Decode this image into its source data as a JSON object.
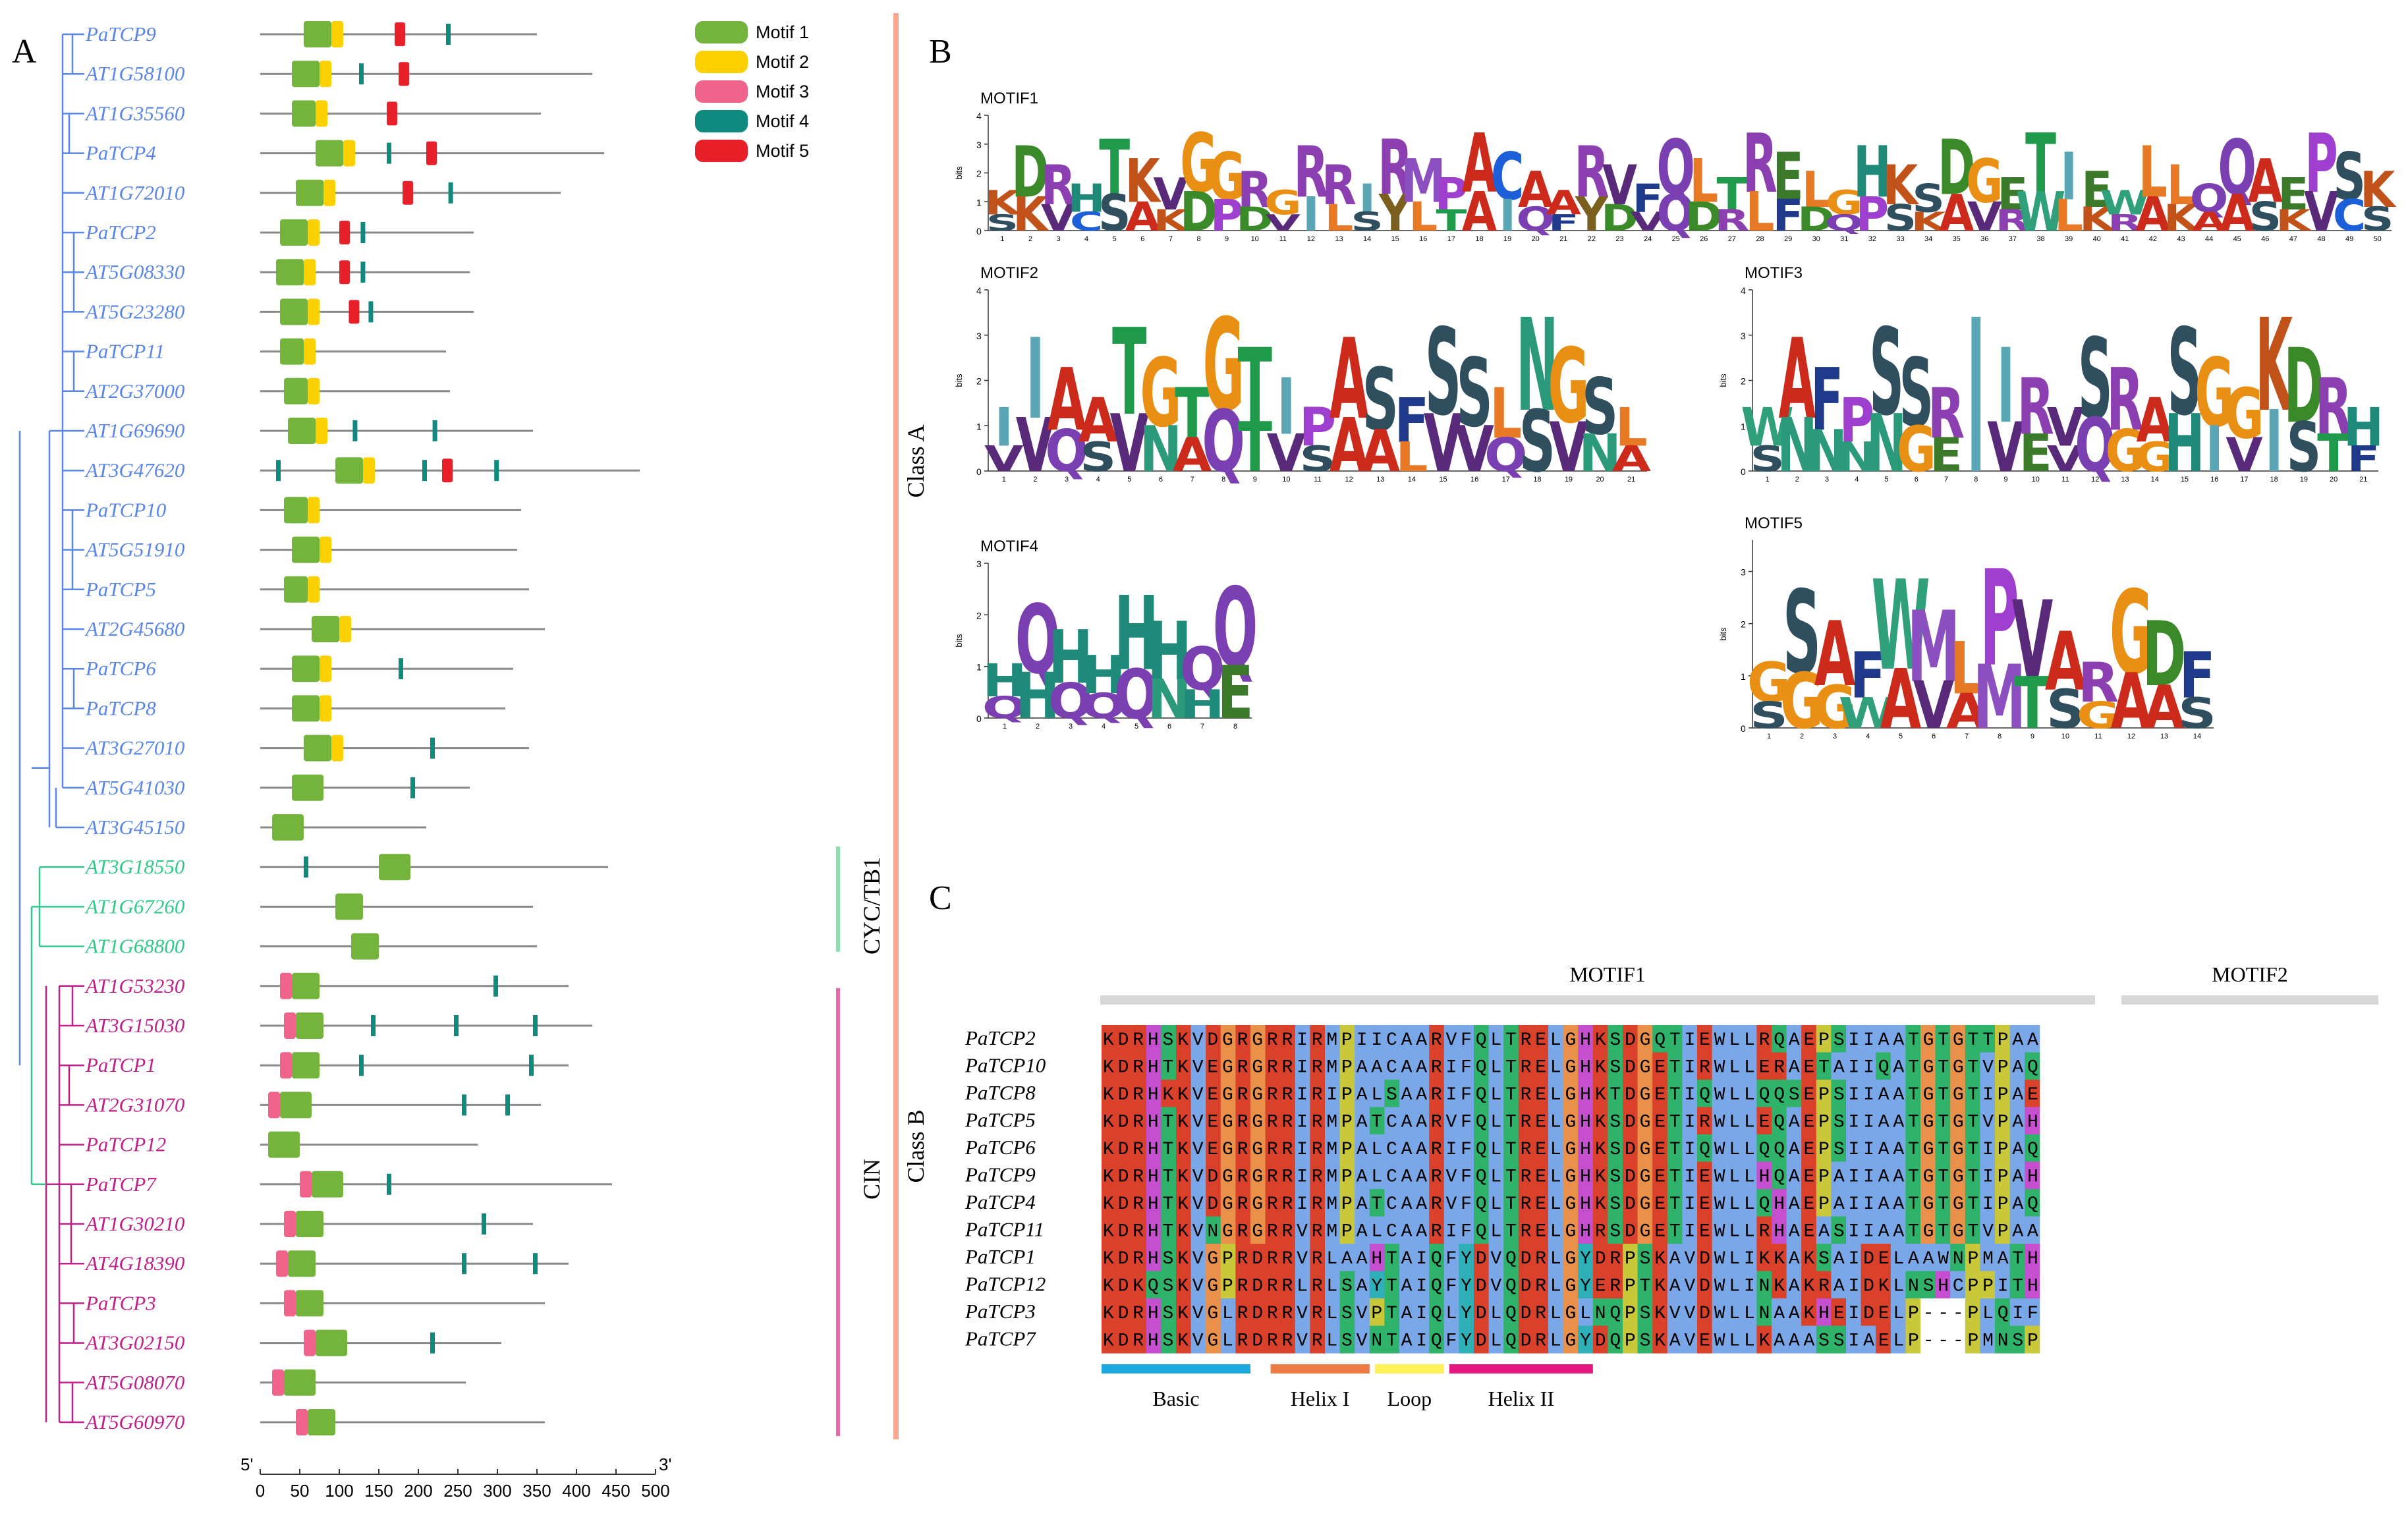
{
  "panels": {
    "a": "A",
    "b": "B",
    "c": "C"
  },
  "colors": {
    "motif1": "#74b43c",
    "motif2": "#fdd000",
    "motif3": "#f0638a",
    "motif4": "#0f8a7e",
    "motif5": "#e8202a",
    "classA": "#5a86e8",
    "cyc": "#2fc98a",
    "cin": "#c0208a"
  },
  "legend": [
    "Motif 1",
    "Motif 2",
    "Motif 3",
    "Motif 4",
    "Motif 5"
  ],
  "genes": [
    {
      "name": "PaTCP9",
      "group": "A",
      "len": 350,
      "m": [
        [
          1,
          55,
          90
        ],
        [
          2,
          90,
          105
        ],
        [
          5,
          170,
          180
        ],
        [
          4,
          235,
          240
        ]
      ]
    },
    {
      "name": "AT1G58100",
      "group": "A",
      "len": 420,
      "m": [
        [
          1,
          40,
          75
        ],
        [
          2,
          75,
          90
        ],
        [
          4,
          125,
          130
        ],
        [
          5,
          175,
          185
        ]
      ]
    },
    {
      "name": "AT1G35560",
      "group": "A",
      "len": 355,
      "m": [
        [
          1,
          40,
          70
        ],
        [
          2,
          70,
          85
        ],
        [
          5,
          160,
          170
        ]
      ]
    },
    {
      "name": "PaTCP4",
      "group": "A",
      "len": 435,
      "m": [
        [
          1,
          70,
          105
        ],
        [
          2,
          105,
          120
        ],
        [
          4,
          160,
          165
        ],
        [
          5,
          210,
          220
        ]
      ]
    },
    {
      "name": "AT1G72010",
      "group": "A",
      "len": 380,
      "m": [
        [
          1,
          45,
          80
        ],
        [
          2,
          80,
          95
        ],
        [
          5,
          180,
          190
        ],
        [
          4,
          238,
          243
        ]
      ]
    },
    {
      "name": "PaTCP2",
      "group": "A",
      "len": 270,
      "m": [
        [
          1,
          25,
          60
        ],
        [
          2,
          60,
          75
        ],
        [
          5,
          100,
          110
        ],
        [
          4,
          127,
          132
        ]
      ]
    },
    {
      "name": "AT5G08330",
      "group": "A",
      "len": 265,
      "m": [
        [
          1,
          20,
          55
        ],
        [
          2,
          55,
          70
        ],
        [
          5,
          100,
          110
        ],
        [
          4,
          127,
          132
        ]
      ]
    },
    {
      "name": "AT5G23280",
      "group": "A",
      "len": 270,
      "m": [
        [
          1,
          25,
          60
        ],
        [
          2,
          60,
          75
        ],
        [
          5,
          112,
          122
        ],
        [
          4,
          137,
          142
        ]
      ]
    },
    {
      "name": "PaTCP11",
      "group": "A",
      "len": 235,
      "m": [
        [
          1,
          25,
          55
        ],
        [
          2,
          55,
          70
        ]
      ]
    },
    {
      "name": "AT2G37000",
      "group": "A",
      "len": 240,
      "m": [
        [
          1,
          30,
          60
        ],
        [
          2,
          60,
          75
        ]
      ]
    },
    {
      "name": "AT1G69690",
      "group": "A",
      "len": 345,
      "m": [
        [
          1,
          35,
          70
        ],
        [
          2,
          70,
          85
        ],
        [
          4,
          117,
          122
        ],
        [
          4,
          218,
          223
        ]
      ]
    },
    {
      "name": "AT3G47620",
      "group": "A",
      "len": 480,
      "m": [
        [
          4,
          20,
          25
        ],
        [
          1,
          95,
          130
        ],
        [
          2,
          130,
          145
        ],
        [
          4,
          205,
          210
        ],
        [
          5,
          230,
          240
        ],
        [
          4,
          296,
          301
        ]
      ]
    },
    {
      "name": "PaTCP10",
      "group": "A",
      "len": 330,
      "m": [
        [
          1,
          30,
          60
        ],
        [
          2,
          60,
          75
        ]
      ]
    },
    {
      "name": "AT5G51910",
      "group": "A",
      "len": 325,
      "m": [
        [
          1,
          40,
          75
        ],
        [
          2,
          75,
          90
        ]
      ]
    },
    {
      "name": "PaTCP5",
      "group": "A",
      "len": 340,
      "m": [
        [
          1,
          30,
          60
        ],
        [
          2,
          60,
          75
        ]
      ]
    },
    {
      "name": "AT2G45680",
      "group": "A",
      "len": 360,
      "m": [
        [
          1,
          65,
          100
        ],
        [
          2,
          100,
          115
        ]
      ]
    },
    {
      "name": "PaTCP6",
      "group": "A",
      "len": 320,
      "m": [
        [
          1,
          40,
          75
        ],
        [
          2,
          75,
          90
        ],
        [
          4,
          175,
          180
        ]
      ]
    },
    {
      "name": "PaTCP8",
      "group": "A",
      "len": 310,
      "m": [
        [
          1,
          40,
          75
        ],
        [
          2,
          75,
          90
        ]
      ]
    },
    {
      "name": "AT3G27010",
      "group": "A",
      "len": 340,
      "m": [
        [
          1,
          55,
          90
        ],
        [
          2,
          90,
          105
        ],
        [
          4,
          215,
          220
        ]
      ]
    },
    {
      "name": "AT5G41030",
      "group": "A",
      "len": 265,
      "m": [
        [
          1,
          40,
          80
        ],
        [
          4,
          190,
          195
        ]
      ]
    },
    {
      "name": "AT3G45150",
      "group": "A",
      "len": 210,
      "m": [
        [
          1,
          15,
          55
        ]
      ]
    },
    {
      "name": "AT3G18550",
      "group": "CYC",
      "len": 440,
      "m": [
        [
          4,
          55,
          60
        ],
        [
          1,
          150,
          190
        ]
      ]
    },
    {
      "name": "AT1G67260",
      "group": "CYC",
      "len": 345,
      "m": [
        [
          1,
          95,
          130
        ]
      ]
    },
    {
      "name": "AT1G68800",
      "group": "CYC",
      "len": 350,
      "m": [
        [
          1,
          115,
          150
        ]
      ]
    },
    {
      "name": "AT1G53230",
      "group": "CIN",
      "len": 390,
      "m": [
        [
          3,
          25,
          40
        ],
        [
          1,
          40,
          75
        ],
        [
          4,
          295,
          300
        ]
      ]
    },
    {
      "name": "AT3G15030",
      "group": "CIN",
      "len": 420,
      "m": [
        [
          3,
          30,
          45
        ],
        [
          1,
          45,
          80
        ],
        [
          4,
          140,
          145
        ],
        [
          4,
          245,
          250
        ],
        [
          4,
          345,
          350
        ]
      ]
    },
    {
      "name": "PaTCP1",
      "group": "CIN",
      "len": 390,
      "m": [
        [
          3,
          25,
          40
        ],
        [
          1,
          40,
          75
        ],
        [
          4,
          125,
          130
        ],
        [
          4,
          340,
          345
        ]
      ]
    },
    {
      "name": "AT2G31070",
      "group": "CIN",
      "len": 355,
      "m": [
        [
          3,
          10,
          25
        ],
        [
          1,
          25,
          65
        ],
        [
          4,
          255,
          260
        ],
        [
          4,
          310,
          315
        ]
      ]
    },
    {
      "name": "PaTCP12",
      "group": "CIN",
      "len": 275,
      "m": [
        [
          1,
          10,
          50
        ]
      ]
    },
    {
      "name": "PaTCP7",
      "group": "CIN",
      "len": 445,
      "m": [
        [
          3,
          50,
          65
        ],
        [
          1,
          65,
          105
        ],
        [
          4,
          160,
          165
        ]
      ]
    },
    {
      "name": "AT1G30210",
      "group": "CIN",
      "len": 345,
      "m": [
        [
          3,
          30,
          45
        ],
        [
          1,
          45,
          80
        ],
        [
          4,
          280,
          285
        ]
      ]
    },
    {
      "name": "AT4G18390",
      "group": "CIN",
      "len": 390,
      "m": [
        [
          3,
          20,
          35
        ],
        [
          1,
          35,
          70
        ],
        [
          4,
          255,
          260
        ],
        [
          4,
          345,
          350
        ]
      ]
    },
    {
      "name": "PaTCP3",
      "group": "CIN",
      "len": 360,
      "m": [
        [
          3,
          30,
          45
        ],
        [
          1,
          45,
          80
        ]
      ]
    },
    {
      "name": "AT3G02150",
      "group": "CIN",
      "len": 305,
      "m": [
        [
          3,
          55,
          70
        ],
        [
          1,
          70,
          110
        ],
        [
          4,
          215,
          220
        ]
      ]
    },
    {
      "name": "AT5G08070",
      "group": "CIN",
      "len": 260,
      "m": [
        [
          3,
          15,
          30
        ],
        [
          1,
          30,
          70
        ]
      ]
    },
    {
      "name": "AT5G60970",
      "group": "CIN",
      "len": 360,
      "m": [
        [
          3,
          45,
          60
        ],
        [
          1,
          60,
          95
        ]
      ]
    }
  ],
  "axis": {
    "start": "5'",
    "end": "3'",
    "ticks": [
      "0",
      "50",
      "100",
      "150",
      "200",
      "250",
      "300",
      "350",
      "400",
      "450",
      "500"
    ]
  },
  "groups": {
    "cyc": "CYC/TB1",
    "cin": "CIN",
    "classA": "Class A",
    "classB": "Class B"
  },
  "motifs": {
    "m1": {
      "title": "MOTIF1",
      "top": "KDRHTKVGGRGRRIRMPACAARVFQLTRELGHKSDGETIEWLLQQAEPS",
      "bottom": "SKVCSAKDPDVILSYLTAIQFYDVQDRLFDQPSKAVRWLKRAKAA"
    },
    "m2": {
      "title": "MOTIF2",
      "top": "IIAATGTGTIPASFSSLNGSL",
      "bottom": "VVQSVNAQTVSAAL"
    },
    "m3": {
      "title": "MOTIF3",
      "top": "WAFPSSRIIRVSRASGGKDRH",
      "bottom": "SNNNNGEIVEVQGGHIVISTFR"
    },
    "m4": {
      "title": "MOTIF4",
      "top": "HQHHHHQQ",
      "bottom": "QHQQQNHE"
    },
    "m5": {
      "title": "MOTIF5",
      "top": "GSAFWMLPVARGDFG",
      "bottom": "SGGWAVAMTSGAA"
    },
    "bits": "bits"
  },
  "alignment": {
    "header1": "MOTIF1",
    "header2": "MOTIF2",
    "rows": [
      {
        "name": "PaTCP2",
        "seq": "KDRHSKVDGRGRRIRMPIICAARVFQLTRELGHKSDGQTIEWLLRQAEPSIIAATGTGTTPAA"
      },
      {
        "name": "PaTCP10",
        "seq": "KDRHTKVEGRGRRIRMPAACAARIFQLTRELGHKSDGETIRWLLERAETAIIQATGTGTVPAQ"
      },
      {
        "name": "PaTCP8",
        "seq": "KDRHKKVEGRGRRIRIPALSAARIFQLTRELGHKTDGETIQWLLQQSEPSIIAATGTGTIPAE"
      },
      {
        "name": "PaTCP5",
        "seq": "KDRHTKVEGRGRRIRMPATCAARVFQLTRELGHKSDGETIRWLLEQAEPSIIAATGTGTVPAH"
      },
      {
        "name": "PaTCP6",
        "seq": "KDRHTKVEGRGRRIRMPALCAARIFQLTRELGHKSDGETIQWLLQQAEPSIIAATGTGTIPAQ"
      },
      {
        "name": "PaTCP9",
        "seq": "KDRHTKVDGRGRRIRMPALCAARVFQLTRELGHKSDGETIEWLLHQAEPAIIAATGTGTIPAH"
      },
      {
        "name": "PaTCP4",
        "seq": "KDRHTKVDGRGRRIRMPATCAARVFQLTRELGHKSDGETIEWLLQHAEPAIIAATGTGTIPAQ"
      },
      {
        "name": "PaTCP11",
        "seq": "KDRHTKVNGRGRRVRMPALCAARIFQLTRELGHRSDGETIEWLLRHAEASIIAATGTGTVPAA"
      },
      {
        "name": "PaTCP1",
        "seq": "KDRHSKVGPRDRRVRLAAHTAIQFYDVQDRLGYDRPSKAVDWLIKKAKSAIDELAAWNPMATH"
      },
      {
        "name": "PaTCP12",
        "seq": "KDKQSKVGPRDRRLRLSAYTAIQFYDVQDRLGYERPTKAVDWLINKAKRAIDKLNSHCPPITH"
      },
      {
        "name": "PaTCP3",
        "seq": "KDRHSKVGLRDRRVRLSVPTAIQLYDLQDRLGLNQPSKVVDWLLNAAKHEIDELP---PLQIF"
      },
      {
        "name": "PaTCP7",
        "seq": "KDRHSKVGLRDRRVRLSVNTAIQFYDLQDRLGYDQPSKAVEWLLKAAASSIAELP---PMNSP"
      }
    ],
    "regions": [
      {
        "label": "Basic",
        "color": "#1ba9e0"
      },
      {
        "label": "Helix I",
        "color": "#ee7b43"
      },
      {
        "label": "Loop",
        "color": "#fff158"
      },
      {
        "label": "Helix II",
        "color": "#e5177f"
      }
    ]
  }
}
